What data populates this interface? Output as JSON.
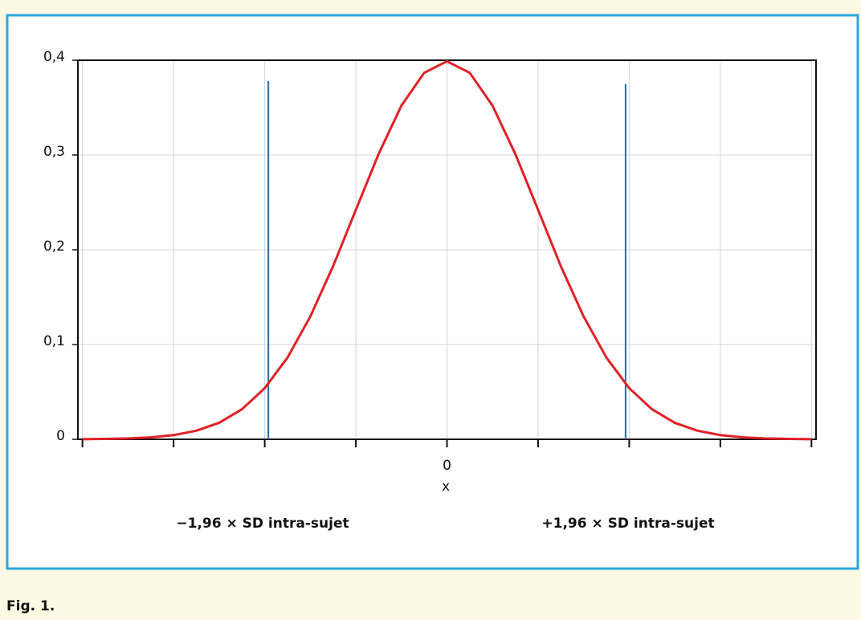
{
  "chart_data": {
    "type": "line",
    "x_label": "x",
    "caption": "Fig. 1.",
    "annotations": [
      "−1,96 × SD intra-sujet",
      "+1,96 × SD intra-sujet"
    ],
    "x": [
      -4,
      -3.75,
      -3.5,
      -3.25,
      -3,
      -2.75,
      -2.5,
      -2.25,
      -2,
      -1.75,
      -1.5,
      -1.25,
      -1,
      -0.75,
      -0.5,
      -0.25,
      0,
      0.25,
      0.5,
      0.75,
      1,
      1.25,
      1.5,
      1.75,
      2,
      2.25,
      2.5,
      2.75,
      3,
      3.25,
      3.5,
      3.75,
      4
    ],
    "series": [
      {
        "color": "#e02127",
        "values": [
          0.0001,
          0.0004,
          0.0009,
          0.002,
          0.0044,
          0.0091,
          0.0175,
          0.0317,
          0.054,
          0.0863,
          0.1295,
          0.1826,
          0.242,
          0.3011,
          0.3521,
          0.3867,
          0.3989,
          0.3867,
          0.3521,
          0.3011,
          0.242,
          0.1826,
          0.1295,
          0.0863,
          0.054,
          0.0317,
          0.0175,
          0.0091,
          0.0044,
          0.002,
          0.0009,
          0.0004,
          0.0001
        ]
      }
    ],
    "vlines": [
      {
        "x": -1.96,
        "y": 0.378,
        "color": "#1f6fb0"
      },
      {
        "x": 1.96,
        "y": 0.375,
        "color": "#1f6fb0"
      }
    ],
    "xlim": [
      -4.05,
      4.05
    ],
    "xticks": [
      0
    ],
    "x_minor_ticks": [
      -4,
      -3,
      -2,
      -1,
      1,
      2,
      3,
      4
    ],
    "ylim": [
      0,
      0.4
    ],
    "yticks": [
      0,
      {
        "value": 0.1,
        "label": "0,1"
      },
      {
        "value": 0.2,
        "label": "0,2"
      },
      {
        "value": 0.3,
        "label": "0,3"
      },
      {
        "value": 0.4,
        "label": "0,4"
      }
    ],
    "grid": true
  }
}
